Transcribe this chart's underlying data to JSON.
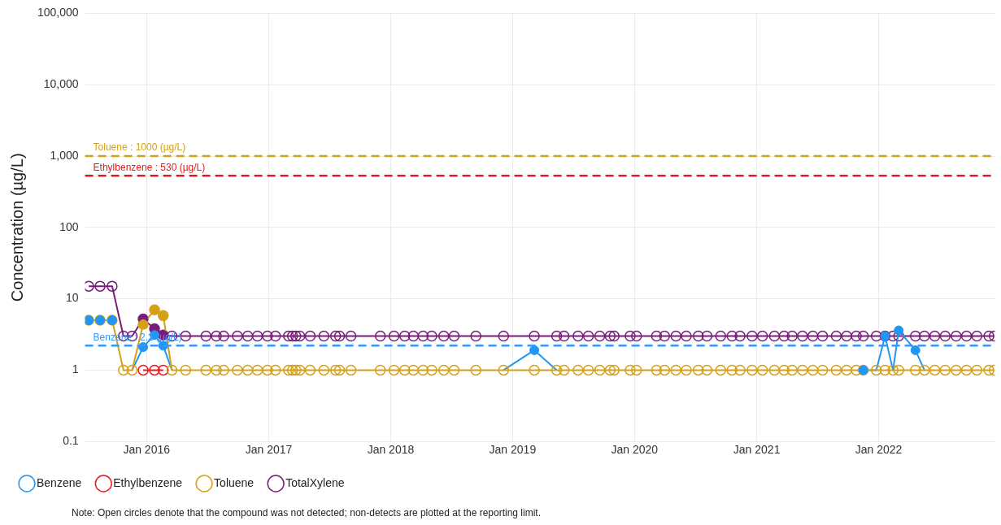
{
  "chart_data": {
    "type": "line",
    "ylabel": "Concentration (µg/L)",
    "log": "y",
    "grid": true,
    "legend": "bottom left",
    "marker": "circle",
    "line_style": "solid",
    "x": [
      "2015-07-12",
      "2015-08-15",
      "2015-09-20",
      "2015-10-24",
      "2015-11-19",
      "2015-12-22",
      "2016-01-25",
      "2016-02-20",
      "2016-03-17",
      "2016-04-27",
      "2016-06-27",
      "2016-07-28",
      "2016-08-19",
      "2016-09-29",
      "2016-10-30",
      "2016-11-28",
      "2016-12-28",
      "2017-01-21",
      "2017-03-01",
      "2017-03-13",
      "2017-03-23",
      "2017-04-04",
      "2017-05-05",
      "2017-06-15",
      "2017-07-20",
      "2017-08-01",
      "2017-09-04",
      "2017-12-01",
      "2018-01-11",
      "2018-02-12",
      "2018-03-10",
      "2018-04-08",
      "2018-05-04",
      "2018-06-09",
      "2018-07-10",
      "2018-09-13",
      "2018-12-05",
      "2019-03-07",
      "2019-05-13",
      "2019-06-04",
      "2019-07-16",
      "2019-08-16",
      "2019-09-19",
      "2019-10-20",
      "2019-11-01",
      "2019-12-19",
      "2020-01-07",
      "2020-03-07",
      "2020-03-31",
      "2020-05-04",
      "2020-06-04",
      "2020-07-10",
      "2020-08-05",
      "2020-09-15",
      "2020-10-19",
      "2020-11-12",
      "2020-12-18",
      "2021-01-18",
      "2021-02-23",
      "2021-03-24",
      "2021-04-17",
      "2021-05-18",
      "2021-06-18",
      "2021-07-17",
      "2021-08-27",
      "2021-09-27",
      "2021-10-26",
      "2021-11-16",
      "2021-12-25",
      "2022-01-20",
      "2022-02-13",
      "2022-03-02",
      "2022-04-21",
      "2022-05-18",
      "2022-06-18",
      "2022-07-19",
      "2022-08-21",
      "2022-09-21",
      "2022-10-22",
      "2022-11-27",
      "2022-12-13"
    ],
    "series": [
      {
        "name": "Benzene",
        "color": "#2196f3",
        "marker": "none",
        "values": [
          5,
          5,
          5,
          null,
          1,
          2.1,
          3.1,
          2.2,
          1,
          null,
          null,
          null,
          null,
          null,
          null,
          null,
          null,
          null,
          null,
          null,
          null,
          null,
          null,
          null,
          null,
          null,
          null,
          null,
          null,
          null,
          null,
          null,
          null,
          null,
          null,
          null,
          1,
          1.9,
          1,
          null,
          null,
          null,
          null,
          null,
          null,
          null,
          null,
          null,
          null,
          null,
          null,
          null,
          null,
          null,
          null,
          null,
          null,
          null,
          null,
          null,
          null,
          null,
          null,
          null,
          null,
          null,
          null,
          1,
          1,
          3,
          1,
          3.6,
          1.9,
          1,
          null,
          null,
          null,
          null,
          null,
          null,
          null
        ]
      },
      {
        "name": "Ethylbenzene",
        "color": "#e41a1c",
        "values": [
          null,
          null,
          null,
          null,
          null,
          1,
          1,
          1,
          null,
          null,
          null,
          null,
          null,
          null,
          null,
          null,
          null,
          null,
          null,
          null,
          null,
          null,
          null,
          null,
          null,
          null,
          null,
          null,
          null,
          null,
          null,
          null,
          null,
          null,
          null,
          null,
          null,
          null,
          null,
          null,
          null,
          null,
          null,
          null,
          null,
          null,
          null,
          null,
          null,
          null,
          null,
          null,
          null,
          null,
          null,
          null,
          null,
          null,
          null,
          null,
          null,
          null,
          null,
          null,
          null,
          null,
          null,
          null,
          null,
          null,
          null,
          null,
          null,
          null,
          null,
          null,
          null,
          null,
          null,
          null,
          null
        ]
      },
      {
        "name": "Toluene",
        "color": "#d4a017",
        "values": [
          5,
          5,
          5,
          1,
          1,
          4.4,
          7,
          5.8,
          1,
          1,
          1,
          1,
          1,
          1,
          1,
          1,
          1,
          1,
          1,
          1,
          1,
          1,
          1,
          1,
          1,
          1,
          1,
          1,
          1,
          1,
          1,
          1,
          1,
          1,
          1,
          1,
          1,
          1,
          1,
          1,
          1,
          1,
          1,
          1,
          1,
          1,
          1,
          1,
          1,
          1,
          1,
          1,
          1,
          1,
          1,
          1,
          1,
          1,
          1,
          1,
          1,
          1,
          1,
          1,
          1,
          1,
          1,
          1,
          1,
          1,
          1,
          1,
          1,
          1,
          1,
          1,
          1,
          1,
          1,
          1,
          1
        ]
      },
      {
        "name": "TotalXylene",
        "color": "#761d78",
        "values": [
          15,
          15,
          15,
          3,
          3,
          5.2,
          3.8,
          3.1,
          3,
          3,
          3,
          3,
          3,
          3,
          3,
          3,
          3,
          3,
          3,
          3,
          3,
          3,
          3,
          3,
          3,
          3,
          3,
          3,
          3,
          3,
          3,
          3,
          3,
          3,
          3,
          3,
          3,
          3,
          3,
          3,
          3,
          3,
          3,
          3,
          3,
          3,
          3,
          3,
          3,
          3,
          3,
          3,
          3,
          3,
          3,
          3,
          3,
          3,
          3,
          3,
          3,
          3,
          3,
          3,
          3,
          3,
          3,
          3,
          3,
          3,
          3,
          3,
          3,
          3,
          3,
          3,
          3,
          3,
          3,
          3,
          3
        ]
      },
      {
        "type": "scatter",
        "color": "#2196f3",
        "x": [
          "2015-07-12",
          "2015-08-15",
          "2015-09-20",
          "2015-12-22",
          "2016-01-25",
          "2016-02-20",
          "2019-03-07",
          "2021-11-16",
          "2022-01-20",
          "2022-03-02",
          "2022-04-21"
        ],
        "values": [
          5,
          5,
          5,
          2.1,
          3.1,
          2.2,
          1.9,
          1,
          3,
          3.6,
          1.9
        ]
      },
      {
        "type": "scatter",
        "color": "#d4a017",
        "x": [
          "2015-12-22",
          "2016-01-25",
          "2016-02-20"
        ],
        "values": [
          4.4,
          7,
          5.8
        ]
      },
      {
        "type": "scatter",
        "color": "#761d78",
        "x": [
          "2015-12-22",
          "2016-01-25",
          "2016-02-20"
        ],
        "values": [
          5.2,
          3.8,
          3.1
        ]
      }
    ],
    "xlim": [
      "2015-07-01",
      "2022-12-15"
    ],
    "xticks": [
      {
        "value": "2016-01-01",
        "label": "Jan 2016"
      },
      {
        "value": "2017-01-01",
        "label": "Jan 2017"
      },
      {
        "value": "2018-01-01",
        "label": "Jan 2018"
      },
      {
        "value": "2019-01-01",
        "label": "Jan 2019"
      },
      {
        "value": "2020-01-01",
        "label": "Jan 2020"
      },
      {
        "value": "2021-01-01",
        "label": "Jan 2021"
      },
      {
        "value": "2022-01-01",
        "label": "Jan 2022"
      }
    ],
    "ylim": [
      0.1,
      100000
    ],
    "yticks": [
      0.1,
      1,
      10,
      100,
      {
        "value": 1000,
        "label": "1,000"
      },
      {
        "value": 10000,
        "label": "10,000"
      },
      {
        "value": 100000,
        "label": "100,000"
      }
    ],
    "ref_lines": [
      {
        "axis": "y",
        "value": 1000,
        "label": "Toluene : 1000 (µg/L)",
        "color": "#d4a017",
        "line_style": "dashed"
      },
      {
        "axis": "y",
        "value": 530,
        "label": "Ethylbenzene : 530 (µg/L)",
        "color": "#e41a1c",
        "line_style": "dashed"
      },
      {
        "axis": "y",
        "value": 2.2,
        "label": "Benzene : 2.2 (µg/L)",
        "color": "#3399ff",
        "line_style": "dashed"
      }
    ],
    "annotations": [
      "Note: Open circles denote that the compound was not detected; non-detects are plotted at the reporting limit."
    ]
  }
}
